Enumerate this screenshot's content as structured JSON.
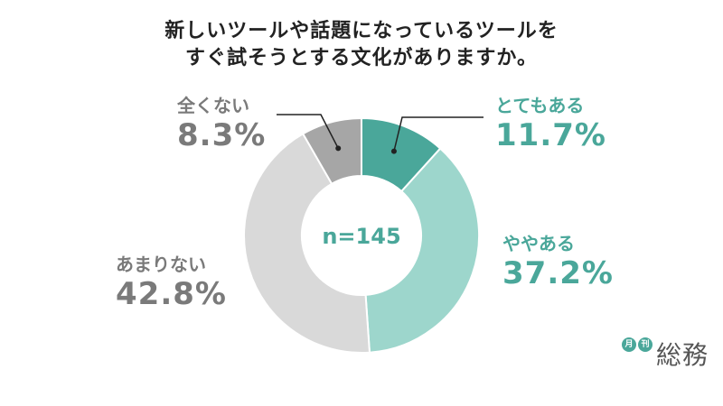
{
  "chart_data": {
    "type": "pie",
    "title": [
      "新しいツールや話題になっているツールを",
      "すぐ試そうとする文化がありますか。"
    ],
    "center_label": "n=145",
    "slices": [
      {
        "label": "とてもある",
        "value": 11.7,
        "display": "11.7%",
        "color": "#4aa79a",
        "text_color": "#4aa79a"
      },
      {
        "label": "ややある",
        "value": 37.2,
        "display": "37.2%",
        "color": "#9dd6cc",
        "text_color": "#4aa79a"
      },
      {
        "label": "あまりない",
        "value": 42.8,
        "display": "42.8%",
        "color": "#d9d9d9",
        "text_color": "#7a7a7a"
      },
      {
        "label": "全くない",
        "value": 8.3,
        "display": "8.3%",
        "color": "#a6a6a6",
        "text_color": "#7a7a7a"
      }
    ]
  },
  "logo": {
    "circle_1": "月",
    "circle_2": "刊",
    "text": "総務"
  }
}
